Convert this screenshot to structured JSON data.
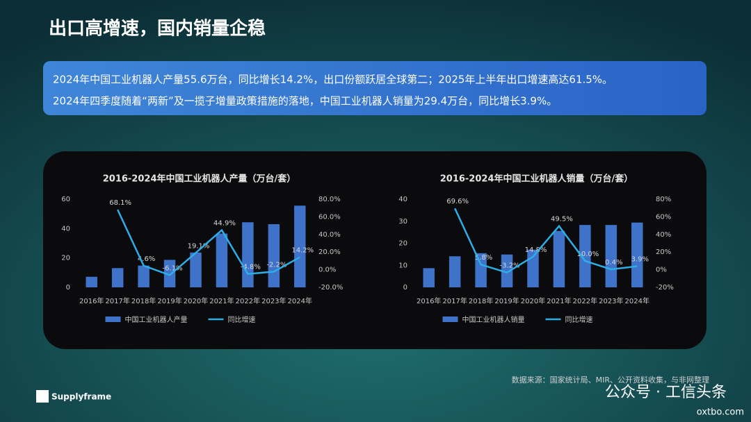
{
  "header": {
    "title": "出口高增速，国内销量企稳"
  },
  "summary": {
    "lines": [
      "2024年中国工业机器人产量55.6万台，同比增长14.2%，出口份额跃居全球第二；2025年上半年出口增速高达61.5%。",
      "2024年四季度随着“两新”及一揽子增量政策措施的落地，中国工业机器人销量为29.4万台，同比增长3.9%。"
    ]
  },
  "chart_data": [
    {
      "type": "bar-line",
      "title": "2016-2024年中国工业机器人产量（万台/套）",
      "categories": [
        "2016年",
        "2017年",
        "2018年",
        "2019年",
        "2020年",
        "2021年",
        "2022年",
        "2023年",
        "2024年"
      ],
      "series": [
        {
          "name": "中国工业机器人产量",
          "color": "#3f73c9",
          "values": [
            7.2,
            13.1,
            14.8,
            18.7,
            23.7,
            36.6,
            44.3,
            43,
            55.6
          ]
        },
        {
          "name": "同比增速",
          "color": "#2eaee6",
          "axis": "y2",
          "values": [
            null,
            68.1,
            4.6,
            -6.1,
            19.1,
            44.9,
            -4.8,
            -2.2,
            14.2
          ],
          "value_labels": [
            null,
            "68.1%",
            "4.6%",
            "-6.1%",
            "19.1%",
            "44.9%",
            "-4.8%",
            "-2.2%",
            "14.2%"
          ]
        }
      ],
      "ylim": [
        0,
        60
      ],
      "yticks": [
        0,
        20,
        40,
        60
      ],
      "y2lim": [
        -20,
        80
      ],
      "y2ticks": [
        {
          "value": -20,
          "label": "-20.0%"
        },
        {
          "value": 0,
          "label": "0.0%"
        },
        {
          "value": 20,
          "label": "20.0%"
        },
        {
          "value": 40,
          "label": "40.0%"
        },
        {
          "value": 60,
          "label": "60.0%"
        },
        {
          "value": 80,
          "label": "80.0%"
        }
      ]
    },
    {
      "type": "bar-line",
      "title": "2016-2024年中国工业机器人销量（万台/套）",
      "categories": [
        "2016年",
        "2017年",
        "2018年",
        "2019年",
        "2020年",
        "2021年",
        "2022年",
        "2023年",
        "2024年"
      ],
      "series": [
        {
          "name": "中国工业机器人销量",
          "color": "#3f73c9",
          "values": [
            8.7,
            14.1,
            15.5,
            14.9,
            17.1,
            25.6,
            28.3,
            28.3,
            29.4
          ]
        },
        {
          "name": "同比增速",
          "color": "#2eaee6",
          "axis": "y2",
          "values": [
            null,
            69.6,
            5.8,
            -3.2,
            14.8,
            49.5,
            10.0,
            0.4,
            3.9
          ],
          "value_labels": [
            null,
            "69.6%",
            "5.8%",
            "-3.2%",
            "14.8%",
            "49.5%",
            "10.0%",
            "0.4%",
            "3.9%"
          ]
        }
      ],
      "ylim": [
        0,
        40
      ],
      "yticks": [
        0,
        10,
        20,
        30,
        40
      ],
      "y2lim": [
        -20,
        80
      ],
      "y2ticks": [
        {
          "value": -20,
          "label": "-20%"
        },
        {
          "value": 0,
          "label": "0%"
        },
        {
          "value": 20,
          "label": "20%"
        },
        {
          "value": 40,
          "label": "40%"
        },
        {
          "value": 60,
          "label": "60%"
        },
        {
          "value": 80,
          "label": "80%"
        }
      ]
    }
  ],
  "footer": {
    "source": "数据来源：国家统计局、MIR、公开资料收集，与非网整理",
    "logo": "Supplyframe",
    "watermark": "公众号 · 工信头条",
    "site": "oxtbo.com"
  }
}
